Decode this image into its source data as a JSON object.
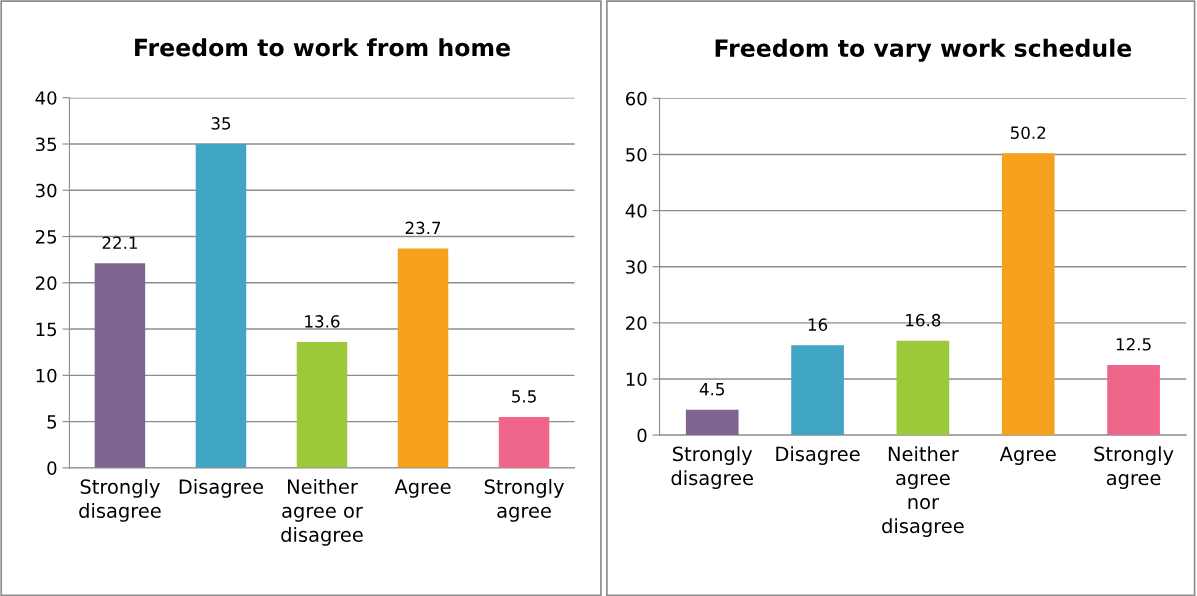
{
  "chart_data": [
    {
      "type": "bar",
      "title": "Freedom to work from home",
      "categories": [
        "Strongly\ndisagree",
        "Disagree",
        "Neither\nagree or\ndisagree",
        "Agree",
        "Strongly\nagree"
      ],
      "values": [
        22.1,
        35,
        13.6,
        23.7,
        5.5
      ],
      "colors": [
        "#7f6391",
        "#41a5c4",
        "#9bc93a",
        "#f5a11e",
        "#f0658a"
      ],
      "ylim": [
        0,
        40
      ],
      "yticks": [
        0,
        5,
        10,
        15,
        20,
        25,
        30,
        35,
        40
      ],
      "grid": "y",
      "data_labels": true
    },
    {
      "type": "bar",
      "title": "Freedom to vary work schedule",
      "categories": [
        "Strongly\ndisagree",
        "Disagree",
        "Neither\nagree\nnor\ndisagree",
        "Agree",
        "Strongly\nagree"
      ],
      "values": [
        4.5,
        16,
        16.8,
        50.2,
        12.5
      ],
      "colors": [
        "#7f6391",
        "#41a5c4",
        "#9bc93a",
        "#f5a11e",
        "#f0658a"
      ],
      "ylim": [
        0,
        60
      ],
      "yticks": [
        0,
        10,
        20,
        30,
        40,
        50,
        60
      ],
      "grid": "y",
      "data_labels": true
    }
  ]
}
